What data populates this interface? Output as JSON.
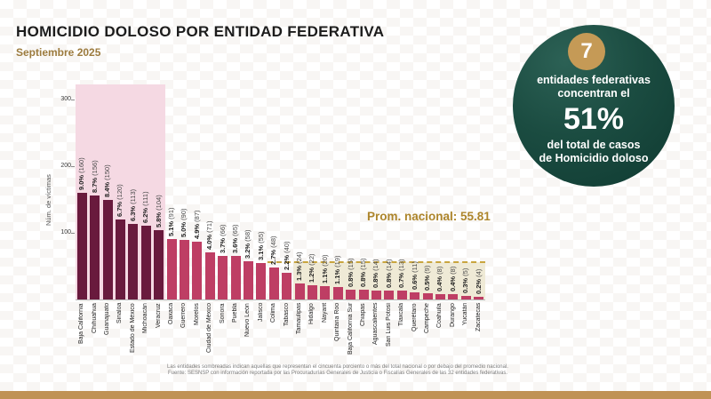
{
  "header": {
    "title": "HOMICIDIO DOLOSO POR ENTIDAD FEDERATIVA",
    "subtitle": "Septiembre 2025"
  },
  "badge": {
    "count": "7",
    "line1": "entidades federativas",
    "line2": "concentran el",
    "big_percent": "51%",
    "line3": "del total de casos",
    "line4": "de Homicidio doloso"
  },
  "annotation": {
    "national_average_label": "Prom. nacional: 55.81"
  },
  "chart_data": {
    "type": "bar",
    "title": "",
    "xlabel": "",
    "ylabel": "Núm. de víctimas",
    "yticks": [
      100,
      200,
      300
    ],
    "ylim": [
      0,
      323
    ],
    "grid": false,
    "legend": "none",
    "national_average": 55.81,
    "highlighted_top_count": 7,
    "avg_line_start_index": 15,
    "shaded_region_start_index": 17,
    "categories": [
      "Baja California",
      "Chihuahua",
      "Guanajuato",
      "Sinaloa",
      "Estado de México",
      "Michoacán",
      "Veracruz",
      "Oaxaca",
      "Guerrero",
      "Morelos",
      "Ciudad de México",
      "Sonora",
      "Puebla",
      "Nuevo León",
      "Jalisco",
      "Colima",
      "Tabasco",
      "Tamaulipas",
      "Hidalgo",
      "Nayarit",
      "Quintana Roo",
      "Baja California Sur",
      "Chiapas",
      "Aguascalientes",
      "San Luis Potosí",
      "Tlaxcala",
      "Querétaro",
      "Campeche",
      "Coahuila",
      "Durango",
      "Yucatán",
      "Zacatecas"
    ],
    "values": [
      160,
      156,
      150,
      120,
      113,
      111,
      104,
      91,
      90,
      87,
      71,
      66,
      65,
      58,
      55,
      48,
      40,
      24,
      22,
      20,
      19,
      15,
      15,
      14,
      14,
      13,
      11,
      9,
      8,
      8,
      5,
      4
    ],
    "percentages": [
      "9.0%",
      "8.7%",
      "8.4%",
      "6.7%",
      "6.3%",
      "6.2%",
      "5.8%",
      "5.1%",
      "5.0%",
      "4.9%",
      "4.0%",
      "3.7%",
      "3.6%",
      "3.2%",
      "3.1%",
      "2.7%",
      "2.2%",
      "1.3%",
      "1.2%",
      "1.1%",
      "1.1%",
      "0.8%",
      "0.8%",
      "0.8%",
      "0.8%",
      "0.7%",
      "0.6%",
      "0.5%",
      "0.4%",
      "0.4%",
      "0.3%",
      "0.2%"
    ],
    "colors": {
      "top_bars": "#691a3d",
      "other_bars": "#be3e64",
      "top_region_bg": "#f5d9e3",
      "below_avg_region_bg": "#efead6",
      "avg_line": "#c9a53f"
    }
  },
  "footer": {
    "line1": "Las entidades sombreadas indican aquellas que representan el cincuenta porciento o más del total nacional o por debajo del promedio nacional.",
    "line2": "Fuente: SESNSP con información reportada por las Procuradurías Generales de Justicia o Fiscalías Generales de las 32 entidades federativas."
  }
}
